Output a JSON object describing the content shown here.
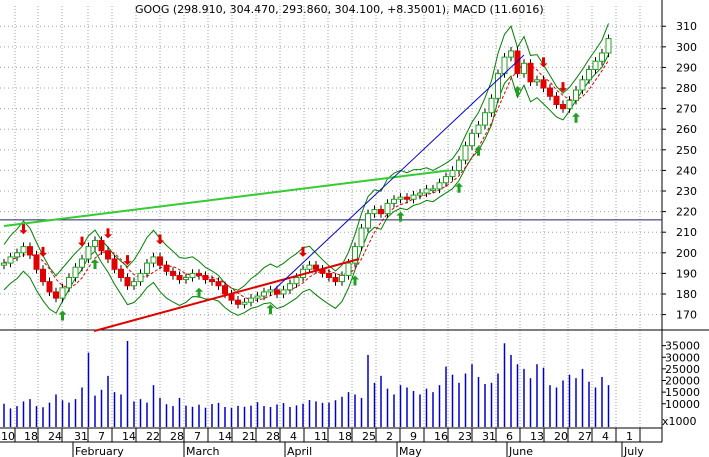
{
  "chart_data": {
    "type": "candlestick",
    "title": "GOOG (298.910, 304.470, 293.860, 304.100, +8.35001), MACD (11.6016)",
    "colors": {
      "up": "#20a020",
      "down": "#e00000",
      "band": "#008000",
      "moving_average": "#e00000",
      "trend_green": "#33cc33",
      "trend_red": "#e00000",
      "trend_blue": "#0000cc",
      "volume": "#0000cc",
      "grid": "#a0a0a0"
    },
    "price_axis": {
      "ticks": [
        170,
        180,
        190,
        200,
        210,
        220,
        230,
        240,
        250,
        260,
        270,
        280,
        290,
        300,
        310
      ],
      "ylim": [
        163,
        314
      ]
    },
    "volume_axis": {
      "ticks": [
        10000,
        15000,
        20000,
        25000,
        30000,
        35000
      ],
      "tick_labels": [
        "10000",
        "15000",
        "20000",
        "25000",
        "30000",
        "35000"
      ],
      "unit_label": "x1000",
      "ylim": [
        0,
        40000
      ]
    },
    "x_axis": {
      "day_labels": [
        "10",
        "18",
        "24",
        "31",
        "7",
        "14",
        "22",
        "28",
        "7",
        "14",
        "21",
        "28",
        "4",
        "11",
        "18",
        "25",
        "2",
        "9",
        "16",
        "23",
        "31",
        "6",
        "13",
        "20",
        "27",
        "4",
        "1"
      ],
      "month_labels": [
        "February",
        "March",
        "April",
        "May",
        "June",
        "July"
      ]
    },
    "horizontal_line": 216,
    "closes": [
      195,
      198,
      200,
      203,
      199,
      192,
      186,
      181,
      178,
      183,
      188,
      193,
      197,
      203,
      206,
      201,
      197,
      192,
      188,
      184,
      186,
      190,
      195,
      198,
      194,
      191,
      189,
      187,
      188,
      190,
      189,
      187,
      186,
      184,
      180,
      177,
      175,
      176,
      178,
      179,
      181,
      182,
      180,
      182,
      185,
      188,
      192,
      194,
      192,
      190,
      188,
      186,
      189,
      195,
      203,
      212,
      219,
      221,
      219,
      224,
      226,
      227,
      226,
      228,
      229,
      231,
      231,
      234,
      237,
      240,
      245,
      252,
      258,
      262,
      268,
      275,
      287,
      295,
      298,
      287,
      292,
      283,
      284,
      280,
      276,
      272,
      270,
      274,
      279,
      284,
      289,
      293,
      297,
      304
    ],
    "volumes": [
      10000,
      8000,
      9000,
      11000,
      12000,
      9000,
      8500,
      10500,
      14000,
      11500,
      10500,
      12000,
      17000,
      32000,
      13500,
      16000,
      22000,
      15000,
      14000,
      37000,
      11000,
      12000,
      10500,
      18000,
      12500,
      9800,
      9000,
      12500,
      9200,
      8700,
      9600,
      8300,
      9900,
      10400,
      8600,
      8300,
      9100,
      8700,
      9200,
      10700,
      9000,
      8600,
      9700,
      10300,
      8600,
      9300,
      10000,
      11600,
      11000,
      10400,
      10500,
      11500,
      13000,
      15000,
      14000,
      12500,
      31000,
      19000,
      22000,
      16500,
      14000,
      18000,
      17000,
      15500,
      14000,
      16500,
      15000,
      18000,
      26000,
      22500,
      19000,
      23000,
      27000,
      21500,
      18500,
      19000,
      23000,
      36000,
      31000,
      27000,
      25000,
      21000,
      27000,
      25500,
      18000,
      17000,
      20000,
      22500,
      21000,
      25000,
      19500,
      17000,
      21500,
      18000
    ],
    "signals": [
      {
        "type": "sell",
        "x_index": 3
      },
      {
        "type": "sell",
        "x_index": 6
      },
      {
        "type": "buy",
        "x_index": 9
      },
      {
        "type": "sell",
        "x_index": 12
      },
      {
        "type": "buy",
        "x_index": 14
      },
      {
        "type": "sell",
        "x_index": 16
      },
      {
        "type": "sell",
        "x_index": 19
      },
      {
        "type": "sell",
        "x_index": 24
      },
      {
        "type": "buy",
        "x_index": 30
      },
      {
        "type": "buy",
        "x_index": 41
      },
      {
        "type": "sell",
        "x_index": 46
      },
      {
        "type": "buy",
        "x_index": 54
      },
      {
        "type": "buy",
        "x_index": 61
      },
      {
        "type": "buy",
        "x_index": 70
      },
      {
        "type": "buy",
        "x_index": 73
      },
      {
        "type": "buy",
        "x_index": 79
      },
      {
        "type": "sell",
        "x_index": 83
      },
      {
        "type": "sell",
        "x_index": 86
      },
      {
        "type": "buy",
        "x_index": 88
      }
    ],
    "trendlines": [
      {
        "name": "green",
        "from": [
          0,
          213
        ],
        "to": [
          89,
          240
        ]
      },
      {
        "name": "red",
        "from": [
          18,
          162
        ],
        "to": [
          71,
          197
        ]
      },
      {
        "name": "blue",
        "from": [
          54,
          182
        ],
        "to": [
          104,
          296
        ]
      }
    ]
  }
}
